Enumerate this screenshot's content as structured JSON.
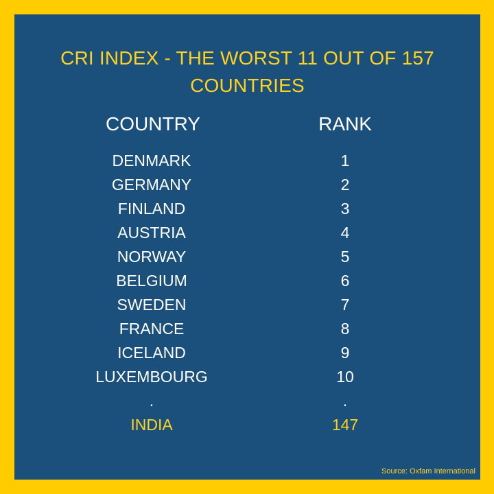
{
  "title": "CRI INDEX - THE WORST 11 OUT OF 157 COUNTRIES",
  "columns": {
    "country": "COUNTRY",
    "rank": "RANK"
  },
  "rows": [
    {
      "country": "DENMARK",
      "rank": "1"
    },
    {
      "country": "GERMANY",
      "rank": "2"
    },
    {
      "country": "FINLAND",
      "rank": "3"
    },
    {
      "country": "AUSTRIA",
      "rank": "4"
    },
    {
      "country": "NORWAY",
      "rank": "5"
    },
    {
      "country": "BELGIUM",
      "rank": "6"
    },
    {
      "country": "SWEDEN",
      "rank": "7"
    },
    {
      "country": "FRANCE",
      "rank": "8"
    },
    {
      "country": "ICELAND",
      "rank": "9"
    },
    {
      "country": "LUXEMBOURG",
      "rank": "10"
    },
    {
      "country": ".",
      "rank": "."
    },
    {
      "country": "INDIA",
      "rank": "147"
    }
  ],
  "source": "Source: Oxfam International",
  "colors": {
    "border": "#FFCC00",
    "background": "#1B4F7C",
    "accent": "#FFD21F",
    "text": "#FFFFFF"
  }
}
